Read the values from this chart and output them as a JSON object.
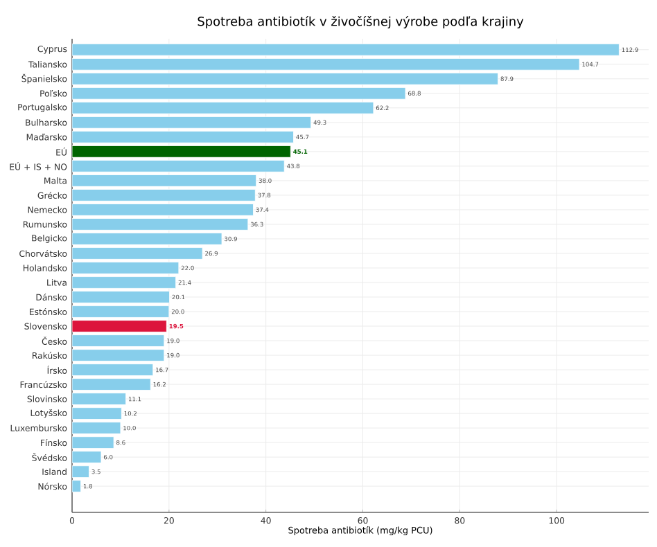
{
  "chart_data": {
    "type": "bar",
    "orientation": "horizontal",
    "title": "Spotreba antibiotík v živočíšnej výrobe podľa krajiny",
    "xlabel": "Spotreba antibiotík (mg/kg PCU)",
    "categories": [
      "Cyprus",
      "Taliansko",
      "Španielsko",
      "Poľsko",
      "Portugalsko",
      "Bulharsko",
      "Maďarsko",
      "EÚ",
      "EÚ + IS + NO",
      "Malta",
      "Grécko",
      "Nemecko",
      "Rumunsko",
      "Belgicko",
      "Chorvátsko",
      "Holandsko",
      "Litva",
      "Dánsko",
      "Estónsko",
      "Slovensko",
      "Česko",
      "Rakúsko",
      "Írsko",
      "Francúzsko",
      "Slovinsko",
      "Lotyšsko",
      "Luxembursko",
      "Fínsko",
      "Švédsko",
      "Island",
      "Nórsko"
    ],
    "values": [
      112.9,
      104.7,
      87.9,
      68.8,
      62.2,
      49.3,
      45.7,
      45.1,
      43.8,
      38.0,
      37.8,
      37.4,
      36.3,
      30.9,
      26.9,
      22.0,
      21.4,
      20.1,
      20.0,
      19.5,
      19.0,
      19.0,
      16.7,
      16.2,
      11.1,
      10.2,
      10.0,
      8.6,
      6.0,
      3.5,
      1.8
    ],
    "value_labels": [
      "112.9",
      "104.7",
      "87.9",
      "68.8",
      "62.2",
      "49.3",
      "45.7",
      "**45.1**",
      "43.8",
      "38.0",
      "37.8",
      "37.4",
      "36.3",
      "30.9",
      "26.9",
      "22.0",
      "21.4",
      "20.1",
      "20.0",
      "**19.5**",
      "19.0",
      "19.0",
      "16.7",
      "16.2",
      "11.1",
      "10.2",
      "10.0",
      "8.6",
      "6.0",
      "3.5",
      "1.8"
    ],
    "colors": [
      "#87ceeb",
      "#87ceeb",
      "#87ceeb",
      "#87ceeb",
      "#87ceeb",
      "#87ceeb",
      "#87ceeb",
      "#006400",
      "#87ceeb",
      "#87ceeb",
      "#87ceeb",
      "#87ceeb",
      "#87ceeb",
      "#87ceeb",
      "#87ceeb",
      "#87ceeb",
      "#87ceeb",
      "#87ceeb",
      "#87ceeb",
      "#dc143c",
      "#87ceeb",
      "#87ceeb",
      "#87ceeb",
      "#87ceeb",
      "#87ceeb",
      "#87ceeb",
      "#87ceeb",
      "#87ceeb",
      "#87ceeb",
      "#87ceeb",
      "#87ceeb"
    ],
    "xlim": [
      0,
      119
    ],
    "xticks": [
      0,
      20,
      40,
      60,
      80,
      100
    ],
    "grid": true
  }
}
